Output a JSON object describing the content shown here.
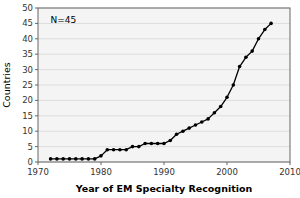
{
  "chart_data": {
    "type": "line",
    "x": [
      1972,
      1973,
      1974,
      1975,
      1976,
      1977,
      1978,
      1979,
      1980,
      1981,
      1982,
      1983,
      1984,
      1985,
      1986,
      1987,
      1988,
      1989,
      1990,
      1991,
      1992,
      1993,
      1994,
      1995,
      1996,
      1997,
      1998,
      1999,
      2000,
      2001,
      2002,
      2003,
      2004,
      2005,
      2006,
      2007
    ],
    "values": [
      1,
      1,
      1,
      1,
      1,
      1,
      1,
      1,
      2,
      4,
      4,
      4,
      4,
      5,
      5,
      6,
      6,
      6,
      6,
      7,
      9,
      10,
      11,
      12,
      13,
      14,
      16,
      18,
      21,
      25,
      31,
      34,
      36,
      40,
      43,
      45
    ],
    "annotation": "N=45",
    "xlabel": "Year of EM Specialty Recognition",
    "ylabel": "Countries",
    "xlim": [
      1970,
      2010
    ],
    "ylim": [
      0,
      50
    ],
    "xticks": [
      1970,
      1980,
      1990,
      2000,
      2010
    ],
    "yticks": [
      0,
      5,
      10,
      15,
      20,
      25,
      30,
      35,
      40,
      45,
      50
    ],
    "color": "#000000",
    "marker": "circle",
    "grid": true
  }
}
